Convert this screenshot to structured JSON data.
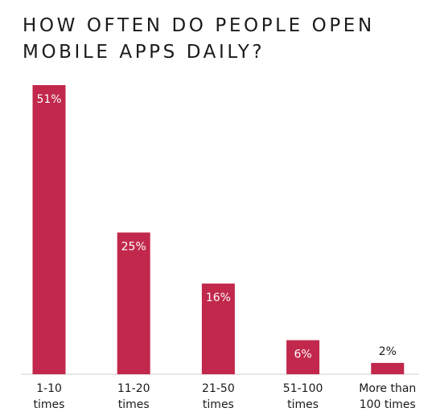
{
  "chart_data": {
    "type": "bar",
    "title": "HOW OFTEN DO PEOPLE OPEN MOBILE APPS DAILY?",
    "categories": [
      [
        "1-10",
        "times"
      ],
      [
        "11-20",
        "times"
      ],
      [
        "21-50",
        "times"
      ],
      [
        "51-100",
        "times"
      ],
      [
        "More than",
        "100 times"
      ]
    ],
    "values": [
      51,
      25,
      16,
      6,
      2
    ],
    "data_labels": [
      "51%",
      "25%",
      "16%",
      "6%",
      "2%"
    ],
    "ylim": [
      0,
      51
    ],
    "grid": false,
    "colors": {
      "bar": "#c1284b",
      "label_inside": "#ffffff",
      "label_outside": "#1a1a1a",
      "axis": "#cccccc"
    }
  }
}
